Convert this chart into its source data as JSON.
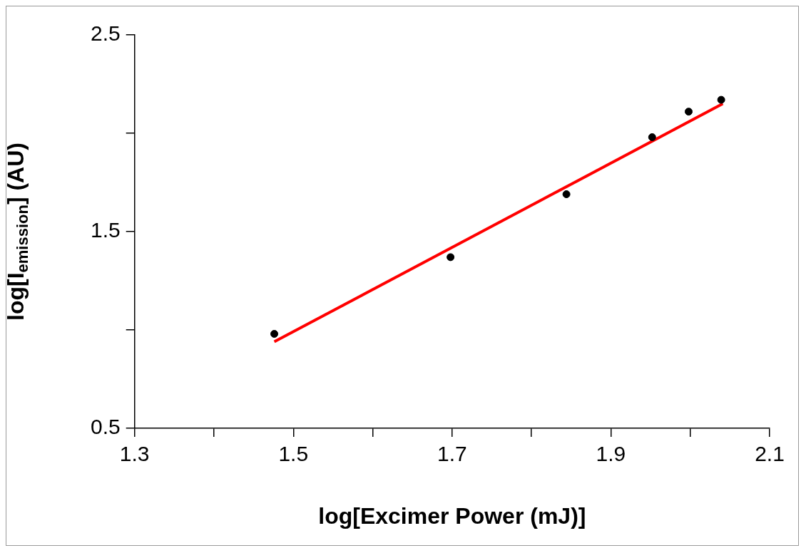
{
  "chart_data": {
    "type": "scatter",
    "xlabel": "log[Excimer Power (mJ)]",
    "ylabel": "log[I$_{emission}$] (AU)",
    "xlim": [
      1.3,
      2.1
    ],
    "xticks": [
      1.3,
      {
        "value": 1.4,
        "label": null
      },
      1.5,
      {
        "value": 1.6,
        "label": null
      },
      1.7,
      {
        "value": 1.8,
        "label": null
      },
      1.9,
      {
        "value": 2.0,
        "label": null
      },
      2.1
    ],
    "ylim": [
      0.5,
      2.5
    ],
    "yticks": [
      0.5,
      {
        "value": 1.0,
        "label": null
      },
      1.5,
      {
        "value": 2.0,
        "label": null
      },
      2.5
    ],
    "grid": false,
    "legend": false,
    "marker": "circle",
    "series": [
      {
        "color": "#000000",
        "x": [
          1.476,
          1.698,
          1.844,
          1.952,
          1.998,
          2.039
        ],
        "values": [
          0.98,
          1.37,
          1.69,
          1.98,
          2.11,
          2.17
        ]
      },
      {
        "type": "line",
        "color": "#ff0000",
        "marker": "none",
        "x": [
          1.476,
          2.041
        ],
        "values": [
          0.94,
          2.15
        ]
      }
    ]
  }
}
